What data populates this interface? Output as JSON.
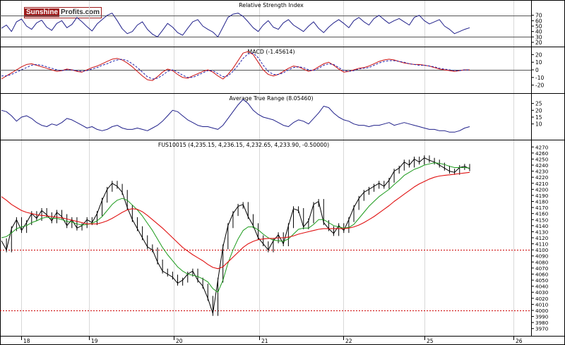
{
  "logo": {
    "brand_a": "Sunshine",
    "brand_b": "Profits.com"
  },
  "colors": {
    "price": "#000000",
    "ma_short": "#1a9a1a",
    "ma_long": "#e01010",
    "rsi": "#20208a",
    "macd": "#cc1010",
    "signal": "#2020aa",
    "atr": "#20208a",
    "ref_line": "#cc0000",
    "grid": "#d8d8d8"
  },
  "chart_data": [
    {
      "type": "line",
      "title": "Relative Strength Index",
      "ylim": [
        20,
        80
      ],
      "y_ticks": [
        "70",
        "60",
        "50",
        "40",
        "30",
        "20"
      ],
      "reference_lines": [
        70,
        30
      ],
      "series": [
        {
          "values": [
            46,
            52,
            40,
            58,
            63,
            50,
            44,
            56,
            61,
            48,
            42,
            55,
            60,
            47,
            53,
            66,
            58,
            49,
            41,
            54,
            62,
            70,
            74,
            60,
            45,
            36,
            40,
            52,
            58,
            44,
            35,
            30,
            42,
            55,
            48,
            38,
            33,
            46,
            58,
            62,
            50,
            44,
            39,
            30,
            48,
            66,
            72,
            74,
            68,
            58,
            47,
            40,
            52,
            60,
            48,
            44,
            56,
            62,
            52,
            46,
            40,
            50,
            58,
            46,
            38,
            48,
            56,
            62,
            55,
            47,
            60,
            66,
            58,
            52,
            64,
            70,
            62,
            55,
            60,
            64,
            58,
            52,
            66,
            70,
            60,
            54,
            58,
            62,
            50,
            44,
            36,
            40,
            44,
            47
          ]
        }
      ]
    },
    {
      "type": "line",
      "title": "MACD (-1.45614)",
      "ylim": [
        -25,
        25
      ],
      "y_ticks": [
        "20",
        "10",
        "0",
        "-10",
        "-20"
      ],
      "series": [
        {
          "values": [
            -12,
            -8,
            -4,
            0,
            4,
            7,
            8,
            6,
            4,
            2,
            0,
            -2,
            -1,
            1,
            0,
            -2,
            -3,
            0,
            3,
            5,
            8,
            11,
            14,
            15,
            13,
            9,
            4,
            -2,
            -8,
            -13,
            -14,
            -9,
            -3,
            1,
            -1,
            -6,
            -10,
            -11,
            -8,
            -5,
            -2,
            0,
            -3,
            -8,
            -12,
            -6,
            2,
            12,
            22,
            24,
            20,
            10,
            0,
            -6,
            -8,
            -6,
            -2,
            2,
            5,
            4,
            1,
            -2,
            0,
            4,
            8,
            10,
            6,
            1,
            -3,
            -2,
            0,
            2,
            3,
            5,
            8,
            11,
            13,
            14,
            13,
            11,
            9,
            8,
            7,
            7,
            6,
            5,
            3,
            1,
            0,
            -1,
            -2,
            -1,
            0,
            0
          ]
        },
        {
          "values": [
            -8,
            -8,
            -6,
            -3,
            0,
            3,
            6,
            7,
            6,
            4,
            2,
            0,
            -1,
            0,
            0,
            -1,
            -2,
            -1,
            1,
            3,
            6,
            8,
            11,
            13,
            14,
            12,
            8,
            3,
            -3,
            -9,
            -12,
            -11,
            -7,
            -2,
            0,
            -3,
            -7,
            -10,
            -10,
            -7,
            -4,
            -1,
            -1,
            -5,
            -9,
            -8,
            -2,
            6,
            15,
            21,
            22,
            16,
            6,
            -2,
            -6,
            -6,
            -4,
            0,
            3,
            4,
            3,
            0,
            -1,
            2,
            6,
            8,
            7,
            3,
            -1,
            -2,
            -1,
            1,
            2,
            3,
            6,
            9,
            11,
            12,
            12,
            11,
            10,
            8,
            7,
            6,
            6,
            5,
            4,
            2,
            1,
            0,
            -1,
            -1,
            0,
            0
          ]
        }
      ]
    },
    {
      "type": "line",
      "title": "Average True Range (8.05460)",
      "ylim": [
        0,
        30
      ],
      "y_ticks": [
        "25",
        "20",
        "15",
        "10"
      ],
      "series": [
        {
          "values": [
            20,
            19,
            16,
            12,
            15,
            16,
            14,
            11,
            9,
            8,
            10,
            9,
            11,
            14,
            13,
            11,
            9,
            7,
            8,
            6,
            5,
            6,
            8,
            9,
            7,
            6,
            6,
            7,
            6,
            5,
            7,
            9,
            12,
            16,
            20,
            19,
            16,
            13,
            11,
            9,
            8,
            8,
            7,
            6,
            9,
            14,
            19,
            24,
            28,
            25,
            20,
            17,
            15,
            14,
            13,
            11,
            9,
            8,
            11,
            13,
            12,
            10,
            14,
            18,
            23,
            22,
            18,
            15,
            13,
            12,
            10,
            9,
            9,
            8,
            9,
            9,
            10,
            11,
            9,
            10,
            11,
            10,
            9,
            8,
            7,
            6,
            6,
            5,
            5,
            4,
            4,
            5,
            7,
            8
          ]
        }
      ]
    },
    {
      "type": "line",
      "title": "FUS10015 (4,235.15, 4,236.15, 4,232.65, 4,233.90, -0.50000)",
      "ylim": [
        3965,
        4275
      ],
      "y_ticks": [
        "4270",
        "4260",
        "4250",
        "4240",
        "4230",
        "4220",
        "4210",
        "4200",
        "4190",
        "4180",
        "4170",
        "4160",
        "4150",
        "4140",
        "4130",
        "4120",
        "4110",
        "4100",
        "4090",
        "4080",
        "4070",
        "4060",
        "4050",
        "4040",
        "4030",
        "4020",
        "4010",
        "4000",
        "3990",
        "3980",
        "3970"
      ],
      "x_ticks": [
        "18",
        "19",
        "20",
        "21",
        "22",
        "25",
        "26"
      ],
      "reference_lines": [
        4100,
        4000
      ],
      "series": [
        {
          "values": [
            4115,
            4100,
            4135,
            4150,
            4132,
            4145,
            4160,
            4152,
            4165,
            4158,
            4148,
            4162,
            4155,
            4140,
            4150,
            4136,
            4140,
            4150,
            4145,
            4160,
            4182,
            4200,
            4210,
            4205,
            4195,
            4170,
            4150,
            4135,
            4120,
            4105,
            4100,
            4080,
            4065,
            4060,
            4055,
            4045,
            4050,
            4060,
            4065,
            4050,
            4040,
            4020,
            3995,
            4050,
            4105,
            4140,
            4160,
            4172,
            4175,
            4155,
            4140,
            4120,
            4110,
            4100,
            4115,
            4125,
            4110,
            4140,
            4168,
            4165,
            4138,
            4148,
            4175,
            4180,
            4145,
            4135,
            4127,
            4140,
            4132,
            4150,
            4170,
            4185,
            4195,
            4200,
            4205,
            4210,
            4205,
            4215,
            4230,
            4235,
            4245,
            4240,
            4250,
            4245,
            4252,
            4248,
            4245,
            4240,
            4235,
            4230,
            4228,
            4236,
            4238,
            4234
          ]
        },
        {
          "values": [
            4120,
            4122,
            4128,
            4135,
            4138,
            4140,
            4145,
            4148,
            4152,
            4154,
            4152,
            4152,
            4150,
            4147,
            4146,
            4143,
            4141,
            4142,
            4144,
            4148,
            4155,
            4165,
            4175,
            4182,
            4185,
            4182,
            4174,
            4166,
            4156,
            4144,
            4132,
            4118,
            4104,
            4092,
            4082,
            4072,
            4065,
            4060,
            4058,
            4056,
            4052,
            4047,
            4036,
            4030,
            4050,
            4078,
            4100,
            4118,
            4132,
            4138,
            4138,
            4133,
            4126,
            4120,
            4116,
            4115,
            4114,
            4118,
            4126,
            4134,
            4136,
            4136,
            4142,
            4150,
            4150,
            4145,
            4140,
            4138,
            4136,
            4137,
            4142,
            4152,
            4162,
            4172,
            4180,
            4188,
            4194,
            4200,
            4208,
            4215,
            4223,
            4228,
            4233,
            4236,
            4240,
            4242,
            4244,
            4243,
            4241,
            4238,
            4236,
            4236,
            4236,
            4235
          ]
        },
        {
          "values": [
            4188,
            4182,
            4175,
            4170,
            4165,
            4162,
            4160,
            4158,
            4157,
            4156,
            4155,
            4154,
            4153,
            4151,
            4149,
            4147,
            4145,
            4143,
            4143,
            4143,
            4145,
            4148,
            4152,
            4157,
            4162,
            4166,
            4168,
            4167,
            4163,
            4157,
            4150,
            4143,
            4136,
            4128,
            4120,
            4112,
            4104,
            4098,
            4092,
            4087,
            4082,
            4076,
            4071,
            4069,
            4072,
            4080,
            4088,
            4096,
            4104,
            4110,
            4114,
            4117,
            4118,
            4119,
            4119,
            4120,
            4120,
            4121,
            4123,
            4126,
            4128,
            4130,
            4132,
            4134,
            4135,
            4135,
            4135,
            4135,
            4135,
            4136,
            4138,
            4141,
            4145,
            4150,
            4155,
            4161,
            4167,
            4173,
            4180,
            4186,
            4192,
            4198,
            4204,
            4209,
            4213,
            4217,
            4220,
            4222,
            4223,
            4224,
            4225,
            4226,
            4227,
            4228
          ]
        }
      ]
    }
  ]
}
